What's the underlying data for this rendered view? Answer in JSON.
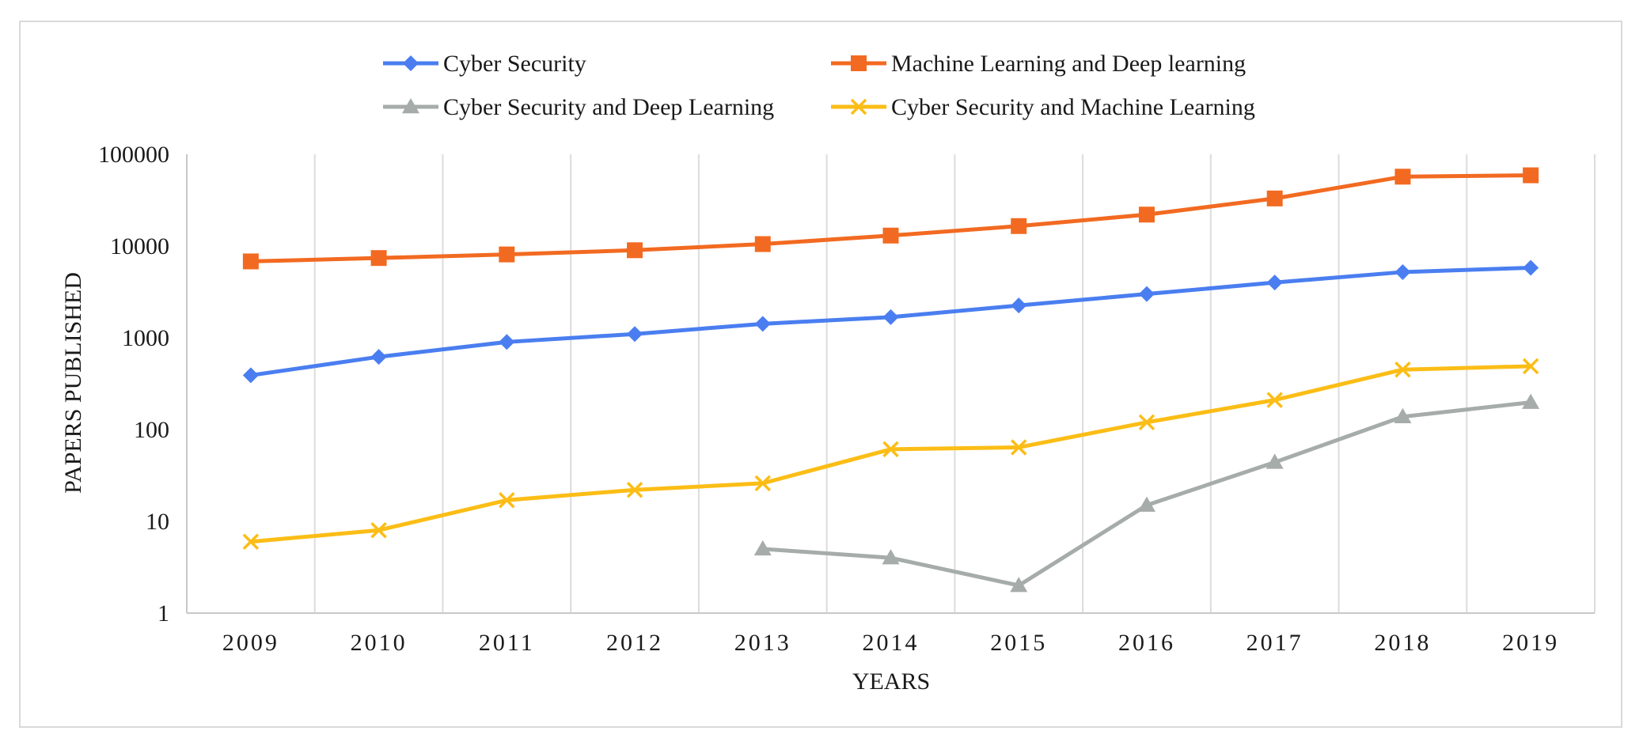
{
  "chart_data": {
    "type": "line",
    "yscale": "log",
    "title": "",
    "xlabel": "YEARS",
    "ylabel": "PAPERS PUBLISHED",
    "ylim": [
      1,
      100000
    ],
    "y_ticks": [
      1,
      10,
      100,
      1000,
      10000,
      100000
    ],
    "y_tick_labels": [
      "1",
      "10",
      "100",
      "1000",
      "10000",
      "100000"
    ],
    "categories": [
      "2009",
      "2010",
      "2011",
      "2012",
      "2013",
      "2014",
      "2015",
      "2016",
      "2017",
      "2018",
      "2019"
    ],
    "grid": "vertical",
    "legend_position": "top",
    "series": [
      {
        "name": "Cyber Security",
        "color": "#4a7ef0",
        "marker": "diamond",
        "values": [
          390,
          620,
          900,
          1100,
          1420,
          1680,
          2250,
          3000,
          4000,
          5200,
          5800
        ]
      },
      {
        "name": "Machine Learning and Deep learning",
        "color": "#f26a21",
        "marker": "square",
        "values": [
          6800,
          7400,
          8100,
          9000,
          10500,
          13000,
          16500,
          22000,
          33000,
          57000,
          59000
        ]
      },
      {
        "name": "Cyber Security and Deep Learning",
        "color": "#a6aca9",
        "marker": "triangle",
        "values": [
          null,
          null,
          null,
          null,
          5,
          4,
          2,
          15,
          44,
          138,
          198
        ]
      },
      {
        "name": "Cyber Security and Machine Learning",
        "color": "#fbbd16",
        "marker": "x",
        "values": [
          6,
          8,
          17,
          22,
          26,
          61,
          64,
          120,
          210,
          450,
          490
        ]
      }
    ]
  }
}
